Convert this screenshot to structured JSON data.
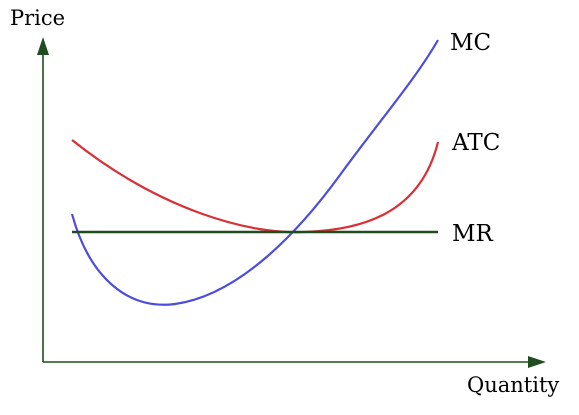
{
  "axes": {
    "y_label": "Price",
    "x_label": "Quantity",
    "axis_color": "#1f4d1f"
  },
  "curves": {
    "mc": {
      "label": "MC",
      "color": "#4d4ddb",
      "shape": "U-shaped marginal cost"
    },
    "atc": {
      "label": "ATC",
      "color": "#d93035",
      "shape": "U-shaped average total cost"
    },
    "mr": {
      "label": "MR",
      "color": "#1f4d1f",
      "shape": "horizontal line"
    }
  }
}
